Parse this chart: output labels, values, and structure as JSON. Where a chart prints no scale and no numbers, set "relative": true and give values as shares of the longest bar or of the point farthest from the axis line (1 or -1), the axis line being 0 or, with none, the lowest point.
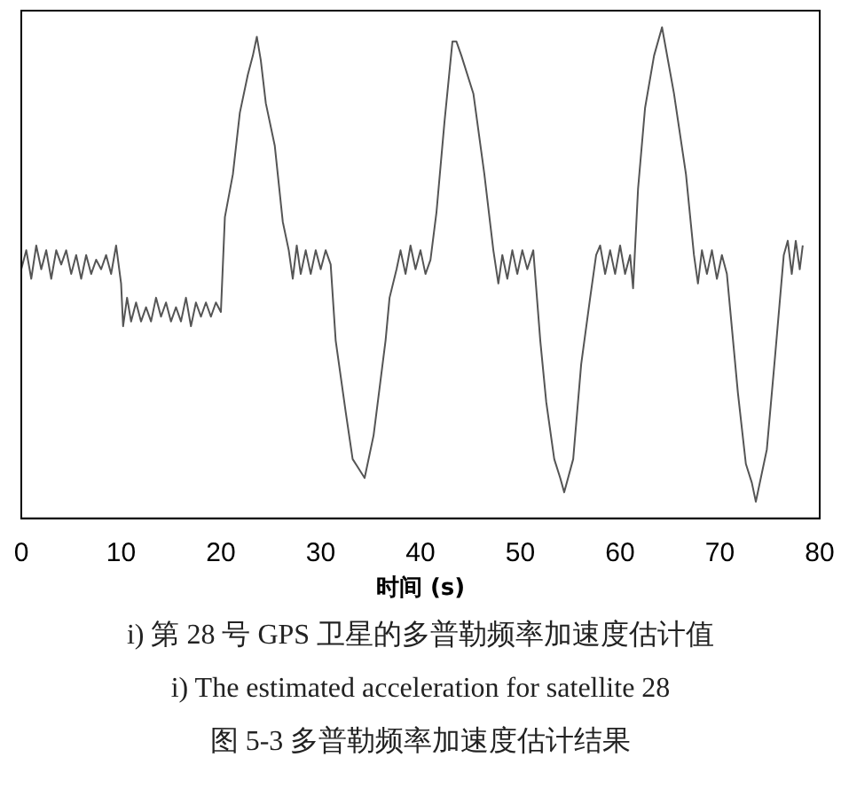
{
  "chart_data": {
    "type": "line",
    "relative": true,
    "xlabel": "时间 (s)",
    "xlim": [
      0,
      80
    ],
    "xticks": [
      0,
      10,
      20,
      30,
      40,
      50,
      60,
      70,
      80
    ],
    "grid": false,
    "legend": false,
    "marker": "none",
    "line_style": "solid",
    "series": [
      {
        "color": "#555555",
        "x": [
          0,
          0.5,
          1,
          1.5,
          2,
          2.5,
          3,
          3.5,
          4,
          4.5,
          5,
          5.5,
          6,
          6.5,
          7,
          7.5,
          8,
          8.5,
          9,
          9.5,
          10,
          10.2,
          10.6,
          11,
          11.5,
          12,
          12.5,
          13,
          13.5,
          14,
          14.5,
          15,
          15.5,
          16,
          16.5,
          17,
          17.5,
          18,
          18.5,
          19,
          19.5,
          20,
          20.4,
          21.2,
          21.9,
          22.7,
          23.2,
          23.6,
          24,
          24.5,
          25.4,
          26.2,
          26.8,
          27.2,
          27.6,
          28,
          28.5,
          29,
          29.5,
          30,
          30.5,
          31,
          31.5,
          32.5,
          33.2,
          33.8,
          34.4,
          35.3,
          36.5,
          36.9,
          37.6,
          38,
          38.5,
          39,
          39.5,
          40,
          40.5,
          41,
          41.6,
          42.4,
          43.2,
          43.6,
          44.1,
          45.3,
          46.4,
          47.3,
          47.8,
          48.2,
          48.7,
          49.2,
          49.7,
          50.2,
          50.7,
          51.3,
          52,
          52.6,
          53.4,
          54,
          54.4,
          55.3,
          56.1,
          57,
          57.6,
          58,
          58.5,
          59,
          59.5,
          60,
          60.5,
          61,
          61.3,
          61.8,
          62.5,
          63.4,
          64.2,
          64.8,
          65.4,
          66.6,
          67.4,
          67.8,
          68.2,
          68.7,
          69.2,
          69.7,
          70.2,
          70.7,
          71.8,
          72.6,
          73.2,
          73.6,
          74.7,
          75.5,
          76.4,
          76.8,
          77.2,
          77.6,
          78,
          78.3
        ],
        "values": [
          0.49,
          0.53,
          0.47,
          0.54,
          0.49,
          0.53,
          0.47,
          0.53,
          0.5,
          0.53,
          0.48,
          0.52,
          0.47,
          0.52,
          0.48,
          0.51,
          0.49,
          0.52,
          0.48,
          0.54,
          0.46,
          0.37,
          0.43,
          0.38,
          0.42,
          0.38,
          0.41,
          0.38,
          0.43,
          0.39,
          0.42,
          0.38,
          0.41,
          0.38,
          0.43,
          0.37,
          0.42,
          0.39,
          0.42,
          0.39,
          0.42,
          0.4,
          0.6,
          0.69,
          0.82,
          0.9,
          0.94,
          0.98,
          0.93,
          0.84,
          0.75,
          0.59,
          0.53,
          0.47,
          0.54,
          0.48,
          0.53,
          0.48,
          0.53,
          0.49,
          0.53,
          0.5,
          0.34,
          0.19,
          0.09,
          0.07,
          0.05,
          0.14,
          0.34,
          0.43,
          0.49,
          0.53,
          0.48,
          0.54,
          0.49,
          0.53,
          0.48,
          0.51,
          0.61,
          0.8,
          0.97,
          0.97,
          0.94,
          0.86,
          0.69,
          0.53,
          0.46,
          0.52,
          0.47,
          0.53,
          0.48,
          0.53,
          0.49,
          0.53,
          0.34,
          0.21,
          0.09,
          0.05,
          0.02,
          0.09,
          0.29,
          0.43,
          0.52,
          0.54,
          0.48,
          0.53,
          0.48,
          0.54,
          0.48,
          0.52,
          0.45,
          0.66,
          0.83,
          0.94,
          1,
          0.93,
          0.86,
          0.69,
          0.52,
          0.46,
          0.53,
          0.48,
          0.53,
          0.47,
          0.52,
          0.48,
          0.23,
          0.08,
          0.04,
          0,
          0.11,
          0.3,
          0.52,
          0.55,
          0.48,
          0.55,
          0.49,
          0.54
        ]
      }
    ],
    "annotations": [
      "i) 第 28 号 GPS 卫星的多普勒频率加速度估计值",
      "i) The estimated acceleration for satellite 28",
      "图 5-3 多普勒频率加速度估计结果"
    ]
  }
}
